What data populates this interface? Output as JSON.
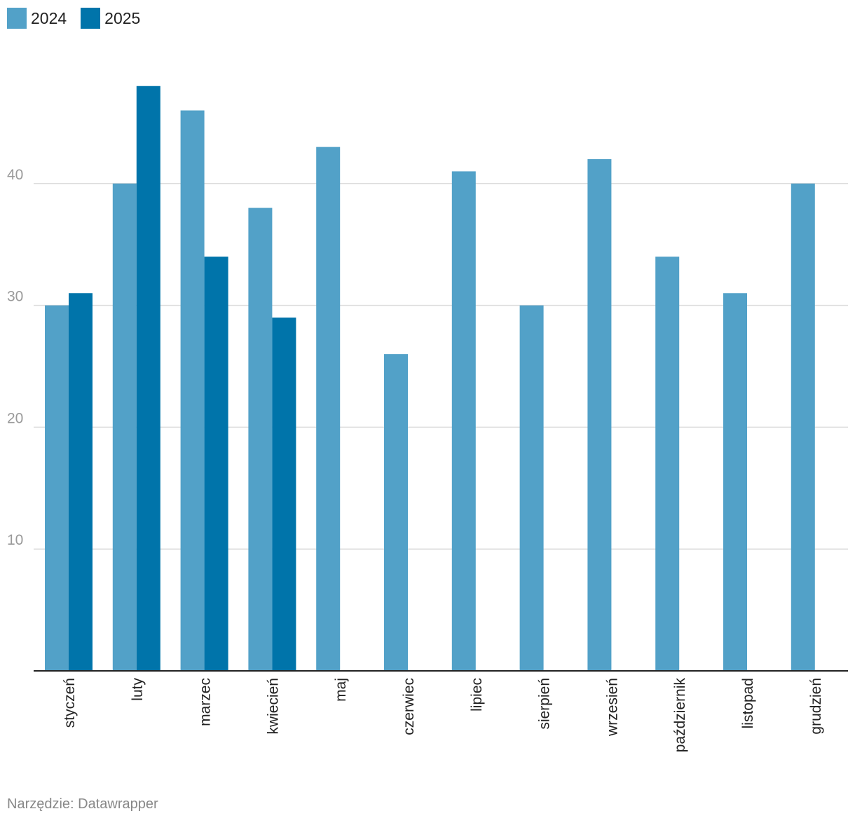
{
  "chart_data": {
    "type": "bar",
    "categories": [
      "styczeń",
      "luty",
      "marzec",
      "kwiecień",
      "maj",
      "czerwiec",
      "lipiec",
      "sierpień",
      "wrzesień",
      "październik",
      "listopad",
      "grudzień"
    ],
    "series": [
      {
        "name": "2024",
        "color": "#52a1c8",
        "values": [
          30,
          40,
          46,
          38,
          43,
          26,
          41,
          30,
          42,
          34,
          31,
          40
        ]
      },
      {
        "name": "2025",
        "color": "#0074aa",
        "values": [
          31,
          48,
          34,
          29,
          null,
          null,
          null,
          null,
          null,
          null,
          null,
          null
        ]
      }
    ],
    "yticks": [
      10,
      20,
      30,
      40
    ],
    "ylim": [
      0,
      50
    ],
    "grid": true,
    "legend_position": "top-left",
    "title": "",
    "xlabel": "",
    "ylabel": ""
  },
  "footer": {
    "source": "Narzędzie: Datawrapper"
  }
}
